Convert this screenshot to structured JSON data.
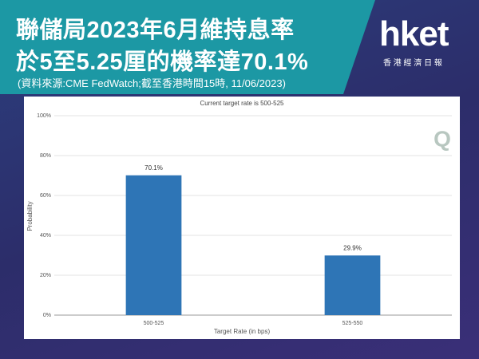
{
  "header": {
    "title_lines": [
      "聯儲局2023年6月維持息率",
      "於5至5.25厘的機率達70.1%"
    ],
    "source": "(資料來源:CME FedWatch;截至香港時間15時, 11/06/2023)",
    "logo": "hket",
    "logo_subtitle": "香 港 經 濟 日 報"
  },
  "chart_data": {
    "type": "bar",
    "title": "Current target rate is 500-525",
    "watermark": "Q",
    "x_label": "Target Rate (in bps)",
    "y_label": "Probability",
    "categories": [
      "500-525",
      "525-550"
    ],
    "values": [
      70.1,
      29.9
    ],
    "value_labels": [
      "70.1%",
      "29.9%"
    ],
    "color": "#2e75b6",
    "ylim": [
      0,
      100
    ],
    "yticks": [
      {
        "value": 0,
        "label": "0%"
      },
      {
        "value": 20,
        "label": "20%"
      },
      {
        "value": 40,
        "label": "40%"
      },
      {
        "value": 60,
        "label": "60%"
      },
      {
        "value": 80,
        "label": "80%"
      },
      {
        "value": 100,
        "label": "100%"
      }
    ],
    "grid": true
  }
}
